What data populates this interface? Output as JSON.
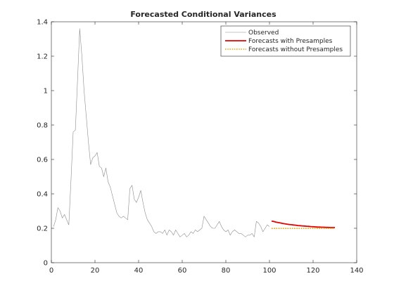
{
  "chart_data": {
    "type": "line",
    "title": "Forecasted Conditional Variances",
    "xlabel": "",
    "ylabel": "",
    "xlim": [
      0,
      140
    ],
    "ylim": [
      0,
      1.4
    ],
    "xticks": [
      0,
      20,
      40,
      60,
      80,
      100,
      120,
      140
    ],
    "xtick_labels": [
      "0",
      "20",
      "40",
      "60",
      "80",
      "100",
      "120",
      "140"
    ],
    "yticks": [
      0,
      0.2,
      0.4,
      0.6,
      0.8,
      1,
      1.2,
      1.4
    ],
    "ytick_labels": [
      "0",
      "0.2",
      "0.4",
      "0.6",
      "0.8",
      "1",
      "1.2",
      "1.4"
    ],
    "grid": false,
    "legend_position": "top-right",
    "series": [
      {
        "name": "Observed",
        "color": "#8c8c8c",
        "style": "solid",
        "x": [
          1,
          2,
          3,
          4,
          5,
          6,
          7,
          8,
          9,
          10,
          11,
          12,
          13,
          14,
          15,
          16,
          17,
          18,
          19,
          20,
          21,
          22,
          23,
          24,
          25,
          26,
          27,
          28,
          29,
          30,
          31,
          32,
          33,
          34,
          35,
          36,
          37,
          38,
          39,
          40,
          41,
          42,
          43,
          44,
          45,
          46,
          47,
          48,
          49,
          50,
          51,
          52,
          53,
          54,
          55,
          56,
          57,
          58,
          59,
          60,
          61,
          62,
          63,
          64,
          65,
          66,
          67,
          68,
          69,
          70,
          71,
          72,
          73,
          74,
          75,
          76,
          77,
          78,
          79,
          80,
          81,
          82,
          83,
          84,
          85,
          86,
          87,
          88,
          89,
          90,
          91,
          92,
          93,
          94,
          95,
          96,
          97,
          98,
          99,
          100
        ],
        "y": [
          0.21,
          0.25,
          0.32,
          0.3,
          0.26,
          0.28,
          0.25,
          0.22,
          0.48,
          0.76,
          0.77,
          1.06,
          1.36,
          1.2,
          1.0,
          0.85,
          0.7,
          0.57,
          0.61,
          0.62,
          0.64,
          0.56,
          0.55,
          0.5,
          0.55,
          0.47,
          0.44,
          0.39,
          0.34,
          0.29,
          0.27,
          0.26,
          0.27,
          0.26,
          0.25,
          0.43,
          0.45,
          0.37,
          0.35,
          0.38,
          0.42,
          0.35,
          0.29,
          0.25,
          0.23,
          0.21,
          0.18,
          0.17,
          0.18,
          0.18,
          0.17,
          0.19,
          0.16,
          0.19,
          0.18,
          0.16,
          0.19,
          0.17,
          0.15,
          0.16,
          0.17,
          0.15,
          0.16,
          0.18,
          0.17,
          0.19,
          0.18,
          0.19,
          0.2,
          0.27,
          0.25,
          0.23,
          0.21,
          0.2,
          0.2,
          0.22,
          0.24,
          0.21,
          0.19,
          0.18,
          0.19,
          0.16,
          0.18,
          0.19,
          0.18,
          0.17,
          0.17,
          0.16,
          0.15,
          0.16,
          0.16,
          0.17,
          0.15,
          0.24,
          0.23,
          0.21,
          0.18,
          0.2,
          0.22,
          0.21
        ]
      },
      {
        "name": "Forecasts with Presamples",
        "color": "#e00000",
        "style": "solid",
        "x": [
          101,
          102,
          103,
          104,
          105,
          106,
          107,
          108,
          109,
          110,
          111,
          112,
          113,
          114,
          115,
          116,
          117,
          118,
          119,
          120,
          121,
          122,
          123,
          124,
          125,
          126,
          127,
          128,
          129,
          130
        ],
        "y": [
          0.242,
          0.239,
          0.236,
          0.233,
          0.231,
          0.228,
          0.226,
          0.224,
          0.222,
          0.221,
          0.219,
          0.218,
          0.216,
          0.215,
          0.214,
          0.213,
          0.212,
          0.211,
          0.21,
          0.209,
          0.208,
          0.207,
          0.207,
          0.206,
          0.206,
          0.205,
          0.205,
          0.204,
          0.204,
          0.204
        ]
      },
      {
        "name": "Forecasts without Presamples",
        "color": "#e6a817",
        "style": "dotted",
        "x": [
          101,
          102,
          103,
          104,
          105,
          106,
          107,
          108,
          109,
          110,
          111,
          112,
          113,
          114,
          115,
          116,
          117,
          118,
          119,
          120,
          121,
          122,
          123,
          124,
          125,
          126,
          127,
          128,
          129,
          130
        ],
        "y": [
          0.199,
          0.199,
          0.199,
          0.199,
          0.199,
          0.199,
          0.199,
          0.199,
          0.199,
          0.199,
          0.199,
          0.199,
          0.199,
          0.199,
          0.199,
          0.199,
          0.199,
          0.199,
          0.199,
          0.199,
          0.199,
          0.199,
          0.199,
          0.199,
          0.199,
          0.199,
          0.199,
          0.199,
          0.199,
          0.199
        ]
      }
    ]
  }
}
